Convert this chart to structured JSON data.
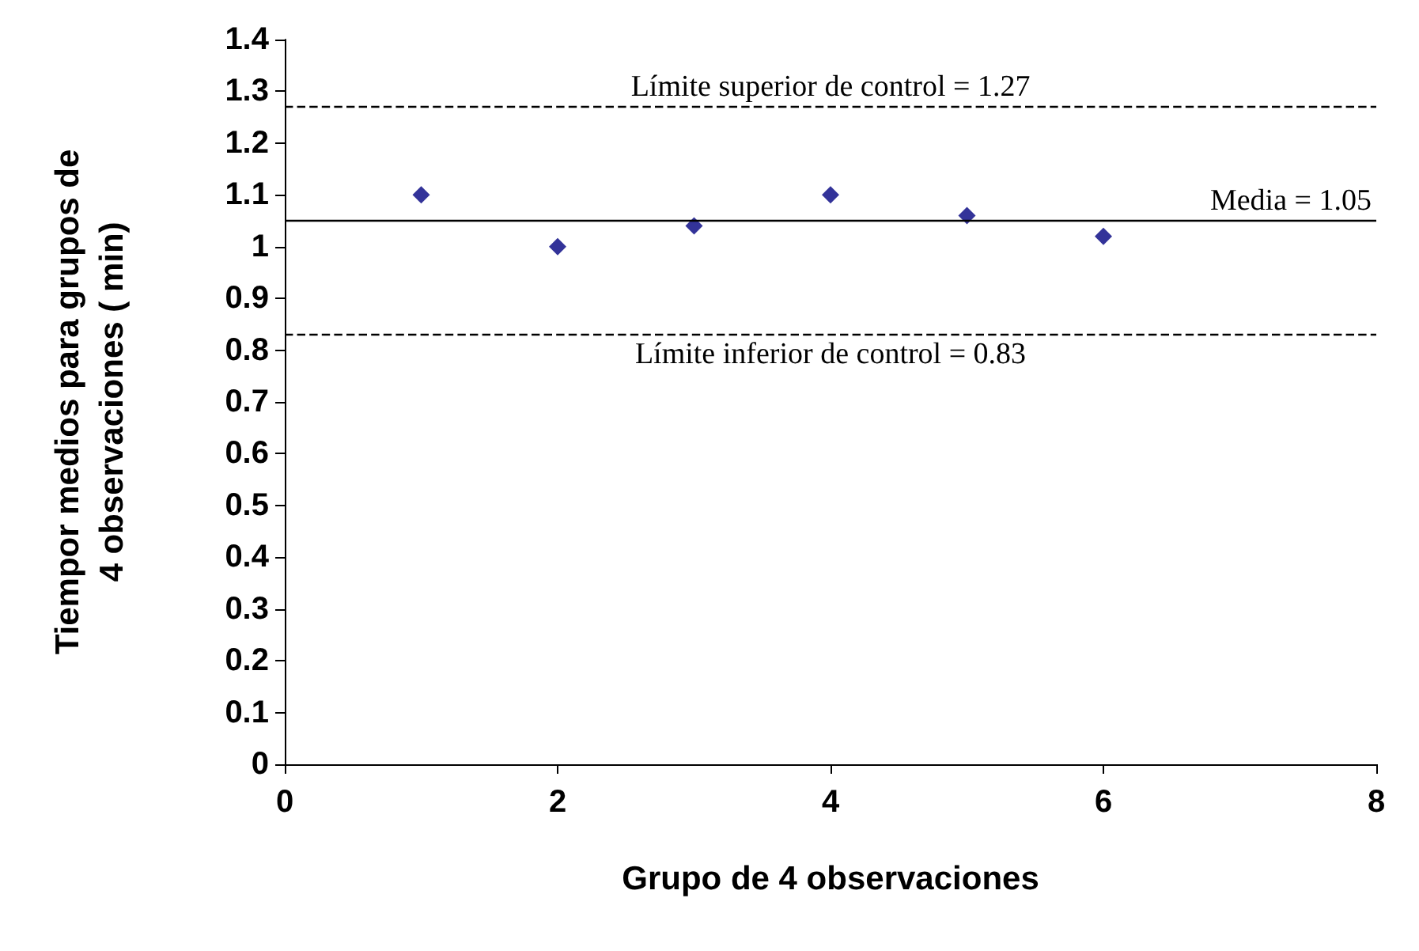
{
  "chart_data": {
    "type": "scatter",
    "xlabel": "Grupo de 4 observaciones",
    "ylabel": "Tiempor medios para grupos de 4 observaciones ( min)",
    "x": [
      1,
      2,
      3,
      4,
      5,
      6
    ],
    "series": [
      {
        "color": "#000080",
        "values": [
          1.1,
          1.0,
          1.04,
          1.1,
          1.06,
          1.02
        ]
      }
    ],
    "marker": "diamond",
    "grid": false,
    "xlim": [
      0,
      8
    ],
    "xticks": [
      0,
      2,
      4,
      6,
      8
    ],
    "ylim": [
      0,
      1.4
    ],
    "yticks": [
      0,
      0.1,
      0.2,
      0.3,
      0.4,
      0.5,
      0.6,
      0.7,
      0.8,
      0.9,
      1,
      1.1,
      1.2,
      1.3,
      1.4
    ],
    "ref_lines": [
      {
        "axis": "y",
        "value": 1.27,
        "label": "Límite superior de control = 1.27",
        "line_style": "dashed",
        "color": "#000000"
      },
      {
        "axis": "y",
        "value": 1.05,
        "label": "Media = 1.05",
        "line_style": "solid",
        "color": "#000000"
      },
      {
        "axis": "y",
        "value": 0.83,
        "label": "Límite inferior de control = 0.83",
        "line_style": "dashed",
        "color": "#000000"
      }
    ]
  }
}
